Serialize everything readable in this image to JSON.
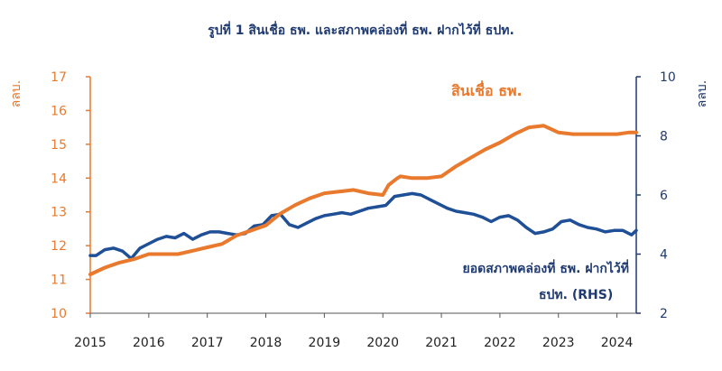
{
  "chart_data": {
    "type": "line",
    "title": "รูปที่ 1 สินเชื่อ ธพ. และสภาพคล่องที่ ธพ. ฝากไว้ที่ ธปท.",
    "left_axis": {
      "unit": "ลลบ.",
      "range": [
        10,
        17
      ],
      "ticks": [
        "10",
        "11",
        "12",
        "13",
        "14",
        "15",
        "16",
        "17"
      ],
      "color": "#e8792d"
    },
    "right_axis": {
      "unit": "ลลบ.",
      "range": [
        2,
        10
      ],
      "ticks": [
        "2",
        "4",
        "6",
        "8",
        "10"
      ],
      "color": "#1f3a70"
    },
    "x_axis": {
      "range": [
        2015,
        2024.33
      ],
      "ticks": [
        "2015",
        "2016",
        "2017",
        "2018",
        "2019",
        "2020",
        "2021",
        "2022",
        "2023",
        "2024"
      ]
    },
    "series": [
      {
        "name": "สินเชื่อ ธพ.",
        "axis": "left",
        "color": "#e8792d",
        "x": [
          2015.0,
          2015.25,
          2015.5,
          2015.75,
          2016.0,
          2016.25,
          2016.5,
          2016.75,
          2017.0,
          2017.25,
          2017.5,
          2017.75,
          2018.0,
          2018.25,
          2018.5,
          2018.75,
          2019.0,
          2019.25,
          2019.5,
          2019.75,
          2020.0,
          2020.1,
          2020.25,
          2020.3,
          2020.5,
          2020.75,
          2021.0,
          2021.25,
          2021.5,
          2021.75,
          2022.0,
          2022.25,
          2022.5,
          2022.75,
          2023.0,
          2023.25,
          2023.5,
          2023.75,
          2024.0,
          2024.2,
          2024.33
        ],
        "y": [
          11.15,
          11.35,
          11.5,
          11.6,
          11.75,
          11.75,
          11.75,
          11.85,
          11.95,
          12.05,
          12.3,
          12.45,
          12.6,
          12.95,
          13.2,
          13.4,
          13.55,
          13.6,
          13.65,
          13.55,
          13.5,
          13.8,
          14.0,
          14.05,
          14.0,
          14.0,
          14.05,
          14.35,
          14.6,
          14.85,
          15.05,
          15.3,
          15.5,
          15.55,
          15.35,
          15.3,
          15.3,
          15.3,
          15.3,
          15.35,
          15.35
        ]
      },
      {
        "name": "ยอดสภาพคล่องที่ ธพ. ฝากไว้ที่ ธปท. (RHS)",
        "axis": "right",
        "color": "#1f4f96",
        "x": [
          2015.0,
          2015.1,
          2015.25,
          2015.4,
          2015.55,
          2015.7,
          2015.85,
          2016.0,
          2016.15,
          2016.3,
          2016.45,
          2016.6,
          2016.75,
          2016.9,
          2017.05,
          2017.2,
          2017.35,
          2017.5,
          2017.65,
          2017.8,
          2017.95,
          2018.1,
          2018.25,
          2018.4,
          2018.55,
          2018.7,
          2018.85,
          2019.0,
          2019.15,
          2019.3,
          2019.45,
          2019.6,
          2019.75,
          2019.9,
          2020.05,
          2020.2,
          2020.35,
          2020.5,
          2020.65,
          2020.8,
          2020.95,
          2021.1,
          2021.25,
          2021.4,
          2021.55,
          2021.7,
          2021.85,
          2022.0,
          2022.15,
          2022.3,
          2022.45,
          2022.6,
          2022.75,
          2022.9,
          2023.05,
          2023.2,
          2023.35,
          2023.5,
          2023.65,
          2023.8,
          2023.95,
          2024.1,
          2024.25,
          2024.33
        ],
        "y": [
          3.95,
          3.95,
          4.15,
          4.2,
          4.1,
          3.85,
          4.2,
          4.35,
          4.5,
          4.6,
          4.55,
          4.7,
          4.5,
          4.65,
          4.75,
          4.75,
          4.7,
          4.65,
          4.7,
          4.95,
          5.0,
          5.3,
          5.35,
          5.0,
          4.9,
          5.05,
          5.2,
          5.3,
          5.35,
          5.4,
          5.35,
          5.45,
          5.55,
          5.6,
          5.65,
          5.95,
          6.0,
          6.05,
          6.0,
          5.85,
          5.7,
          5.55,
          5.45,
          5.4,
          5.35,
          5.25,
          5.1,
          5.25,
          5.3,
          5.15,
          4.9,
          4.7,
          4.75,
          4.85,
          5.1,
          5.15,
          5.0,
          4.9,
          4.85,
          4.75,
          4.8,
          4.8,
          4.65,
          4.8
        ]
      }
    ],
    "annotations": {
      "orange_label": "สินเชื่อ ธพ.",
      "blue_label_line1": "ยอดสภาพคล่องที่ ธพ. ฝากไว้ที่",
      "blue_label_line2": "ธปท. (RHS)"
    }
  }
}
